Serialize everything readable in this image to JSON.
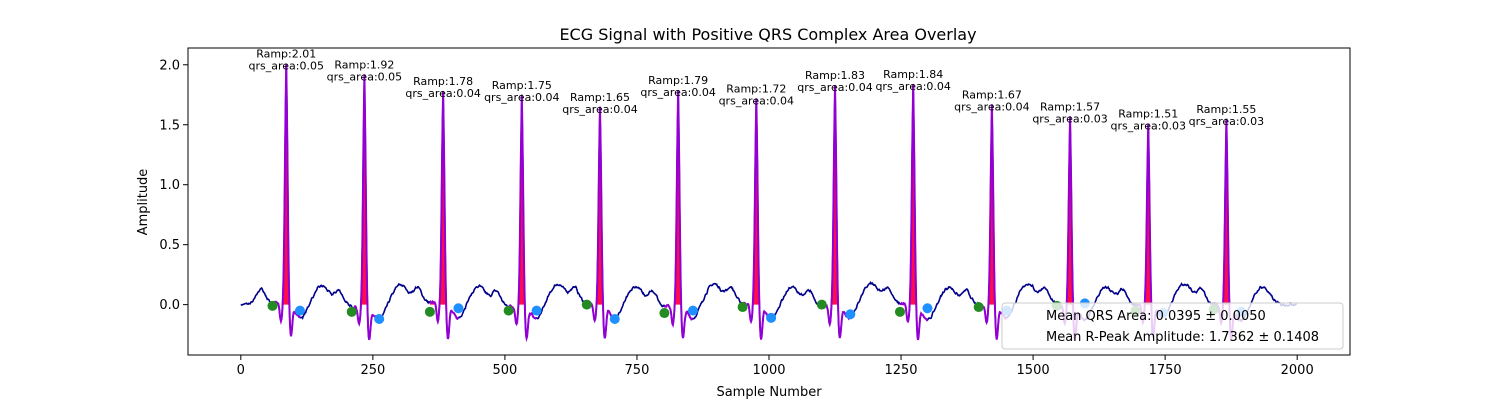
{
  "chart_data": {
    "type": "line",
    "title": "ECG Signal with Positive QRS Complex Area Overlay",
    "xlabel": "Sample Number",
    "ylabel": "Amplitude",
    "xlim": [
      -100,
      2100
    ],
    "ylim": [
      -0.42,
      2.14
    ],
    "x_ticks": [
      0,
      250,
      500,
      750,
      1000,
      1250,
      1500,
      1750,
      2000
    ],
    "y_ticks": [
      0.0,
      0.5,
      1.0,
      1.5,
      2.0
    ],
    "x_tick_labels": [
      "0",
      "250",
      "500",
      "750",
      "1000",
      "1250",
      "1500",
      "1750",
      "2000"
    ],
    "y_tick_labels": [
      "0.0",
      "0.5",
      "1.0",
      "1.5",
      "2.0"
    ],
    "grid": false,
    "colors": {
      "ecg_signal": "#00008b",
      "qrs_segment": "#9400d3",
      "qrs_area_fill": "#ff0040",
      "onset_marker": "#228b22",
      "offset_marker": "#1e90ff"
    },
    "beats": [
      {
        "r_sample": 86,
        "r_amp": 2.01,
        "qrs_area": 0.05,
        "onset_x": 60,
        "onset_y": -0.01,
        "offset_x": 112,
        "offset_y": -0.05,
        "label_amp": "Ramp:2.01",
        "label_area": "qrs_area:0.05"
      },
      {
        "r_sample": 234,
        "r_amp": 1.92,
        "qrs_area": 0.05,
        "onset_x": 210,
        "onset_y": -0.06,
        "offset_x": 262,
        "offset_y": -0.12,
        "label_amp": "Ramp:1.92",
        "label_area": "qrs_area:0.05"
      },
      {
        "r_sample": 383,
        "r_amp": 1.78,
        "qrs_area": 0.04,
        "onset_x": 358,
        "onset_y": -0.06,
        "offset_x": 412,
        "offset_y": -0.03,
        "label_amp": "Ramp:1.78",
        "label_area": "qrs_area:0.04"
      },
      {
        "r_sample": 532,
        "r_amp": 1.75,
        "qrs_area": 0.04,
        "onset_x": 507,
        "onset_y": -0.05,
        "offset_x": 560,
        "offset_y": -0.05,
        "label_amp": "Ramp:1.75",
        "label_area": "qrs_area:0.04"
      },
      {
        "r_sample": 680,
        "r_amp": 1.65,
        "qrs_area": 0.04,
        "onset_x": 655,
        "onset_y": 0.0,
        "offset_x": 708,
        "offset_y": -0.12,
        "label_amp": "Ramp:1.65",
        "label_area": "qrs_area:0.04"
      },
      {
        "r_sample": 828,
        "r_amp": 1.79,
        "qrs_area": 0.04,
        "onset_x": 802,
        "onset_y": -0.07,
        "offset_x": 856,
        "offset_y": -0.05,
        "label_amp": "Ramp:1.79",
        "label_area": "qrs_area:0.04"
      },
      {
        "r_sample": 976,
        "r_amp": 1.72,
        "qrs_area": 0.04,
        "onset_x": 950,
        "onset_y": -0.02,
        "offset_x": 1004,
        "offset_y": -0.11,
        "label_amp": "Ramp:1.72",
        "label_area": "qrs_area:0.04"
      },
      {
        "r_sample": 1125,
        "r_amp": 1.83,
        "qrs_area": 0.04,
        "onset_x": 1100,
        "onset_y": 0.0,
        "offset_x": 1154,
        "offset_y": -0.08,
        "label_amp": "Ramp:1.83",
        "label_area": "qrs_area:0.04"
      },
      {
        "r_sample": 1273,
        "r_amp": 1.84,
        "qrs_area": 0.04,
        "onset_x": 1248,
        "onset_y": -0.06,
        "offset_x": 1300,
        "offset_y": -0.03,
        "label_amp": "Ramp:1.84",
        "label_area": "qrs_area:0.04"
      },
      {
        "r_sample": 1422,
        "r_amp": 1.67,
        "qrs_area": 0.04,
        "onset_x": 1397,
        "onset_y": -0.02,
        "offset_x": 1450,
        "offset_y": -0.05,
        "label_amp": "Ramp:1.67",
        "label_area": "qrs_area:0.04"
      },
      {
        "r_sample": 1570,
        "r_amp": 1.57,
        "qrs_area": 0.03,
        "onset_x": 1545,
        "onset_y": -0.01,
        "offset_x": 1598,
        "offset_y": 0.01,
        "label_amp": "Ramp:1.57",
        "label_area": "qrs_area:0.03"
      },
      {
        "r_sample": 1718,
        "r_amp": 1.51,
        "qrs_area": 0.03,
        "onset_x": 1694,
        "onset_y": -0.05,
        "offset_x": 1746,
        "offset_y": -0.07,
        "label_amp": "Ramp:1.51",
        "label_area": "qrs_area:0.03"
      },
      {
        "r_sample": 1866,
        "r_amp": 1.55,
        "qrs_area": 0.03,
        "onset_x": 1842,
        "onset_y": -0.04,
        "offset_x": 1894,
        "offset_y": -0.06,
        "label_amp": "Ramp:1.55",
        "label_area": "qrs_area:0.03"
      }
    ],
    "legend": {
      "placement": "lower-right",
      "entries": [
        "Mean QRS Area: 0.0395 ± 0.0050",
        "Mean R-Peak Amplitude: 1.7362 ± 0.1408"
      ]
    }
  }
}
